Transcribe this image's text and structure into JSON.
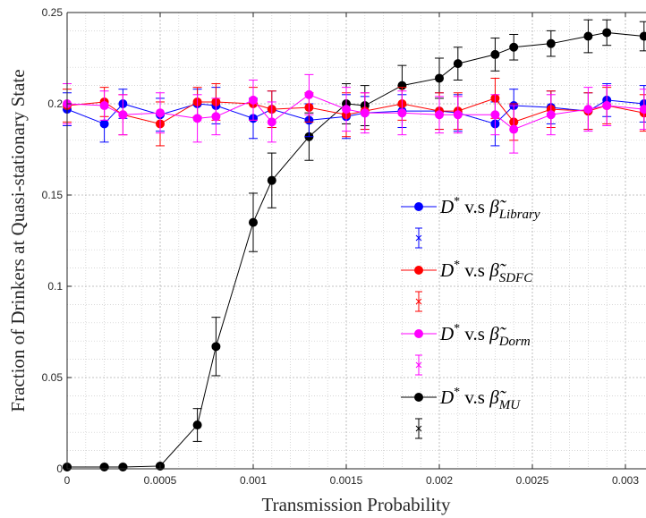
{
  "chart_data": {
    "type": "line",
    "title": "",
    "xlabel": "Transmission Probability",
    "ylabel": "Fraction of Drinkers at Quasi-stationary State",
    "xlim": [
      0,
      0.0031
    ],
    "ylim": [
      0,
      0.25
    ],
    "x_ticks": [
      "0",
      "0.0005",
      "0.001",
      "0.0015",
      "0.002",
      "0.0025",
      "0.003"
    ],
    "x_tick_values": [
      0,
      0.0005,
      0.001,
      0.0015,
      0.002,
      0.0025,
      0.003
    ],
    "y_ticks": [
      "0",
      "0.05",
      "0.1",
      "0.15",
      "0.2",
      "0.25"
    ],
    "y_tick_values": [
      0,
      0.05,
      0.1,
      0.15,
      0.2,
      0.25
    ],
    "grid": true,
    "legend_position": "center-right",
    "legend_vs": "v.s",
    "series": [
      {
        "name": "D* v.s β̃Library",
        "legend_sub": "Library",
        "color": "#0000ff",
        "x": [
          0,
          0.0002,
          0.0003,
          0.0005,
          0.0007,
          0.0008,
          0.001,
          0.0011,
          0.0013,
          0.0015,
          0.0016,
          0.0018,
          0.002,
          0.0021,
          0.0023,
          0.0024,
          0.0026,
          0.0028,
          0.0029,
          0.0031
        ],
        "y": [
          0.197,
          0.189,
          0.2,
          0.194,
          0.2,
          0.199,
          0.192,
          0.197,
          0.191,
          0.193,
          0.195,
          0.196,
          0.196,
          0.195,
          0.189,
          0.199,
          0.198,
          0.196,
          0.202,
          0.2
        ],
        "err": [
          0.009,
          0.01,
          0.008,
          0.009,
          0.008,
          0.01,
          0.011,
          0.01,
          0.009,
          0.012,
          0.009,
          0.009,
          0.01,
          0.01,
          0.012,
          0.009,
          0.009,
          0.01,
          0.009,
          0.01
        ]
      },
      {
        "name": "D* v.s β̃SDFC",
        "legend_sub": "SDFC",
        "color": "#ff0000",
        "x": [
          0,
          0.0002,
          0.0003,
          0.0005,
          0.0007,
          0.0008,
          0.001,
          0.0011,
          0.0013,
          0.0015,
          0.0016,
          0.0018,
          0.002,
          0.0021,
          0.0023,
          0.0024,
          0.0026,
          0.0028,
          0.0029,
          0.0031
        ],
        "y": [
          0.199,
          0.201,
          0.194,
          0.189,
          0.201,
          0.201,
          0.2,
          0.197,
          0.198,
          0.194,
          0.196,
          0.2,
          0.196,
          0.196,
          0.203,
          0.19,
          0.197,
          0.196,
          0.199,
          0.195
        ],
        "err": [
          0.009,
          0.008,
          0.011,
          0.012,
          0.008,
          0.01,
          0.009,
          0.01,
          0.008,
          0.012,
          0.01,
          0.009,
          0.01,
          0.01,
          0.011,
          0.01,
          0.01,
          0.01,
          0.01,
          0.01
        ]
      },
      {
        "name": "D* v.s β̃Dorm",
        "legend_sub": "Dorm",
        "color": "#ff00ff",
        "x": [
          0,
          0.0002,
          0.0003,
          0.0005,
          0.0007,
          0.0008,
          0.001,
          0.0011,
          0.0013,
          0.0015,
          0.0016,
          0.0018,
          0.002,
          0.0021,
          0.0023,
          0.0024,
          0.0026,
          0.0028,
          0.0029,
          0.0031
        ],
        "y": [
          0.2,
          0.199,
          0.194,
          0.195,
          0.192,
          0.193,
          0.202,
          0.19,
          0.205,
          0.197,
          0.195,
          0.195,
          0.194,
          0.194,
          0.194,
          0.186,
          0.194,
          0.197,
          0.199,
          0.197
        ],
        "err": [
          0.011,
          0.008,
          0.011,
          0.011,
          0.013,
          0.01,
          0.011,
          0.011,
          0.011,
          0.012,
          0.011,
          0.012,
          0.01,
          0.01,
          0.011,
          0.013,
          0.011,
          0.012,
          0.011,
          0.011
        ]
      },
      {
        "name": "D* v.s β̃MU",
        "legend_sub": "MU",
        "color": "#000000",
        "x": [
          0,
          0.0002,
          0.0003,
          0.0005,
          0.0007,
          0.0008,
          0.001,
          0.0011,
          0.0013,
          0.0015,
          0.0016,
          0.0018,
          0.002,
          0.0021,
          0.0023,
          0.0024,
          0.0026,
          0.0028,
          0.0029,
          0.0031
        ],
        "y": [
          0.001,
          0.001,
          0.001,
          0.0015,
          0.024,
          0.067,
          0.135,
          0.158,
          0.182,
          0.2,
          0.199,
          0.21,
          0.214,
          0.222,
          0.227,
          0.231,
          0.233,
          0.237,
          0.239,
          0.237
        ],
        "err": [
          0.0005,
          0.0005,
          0.0005,
          0.0005,
          0.009,
          0.016,
          0.016,
          0.015,
          0.013,
          0.011,
          0.011,
          0.011,
          0.011,
          0.009,
          0.009,
          0.007,
          0.007,
          0.009,
          0.007,
          0.008
        ]
      }
    ]
  }
}
